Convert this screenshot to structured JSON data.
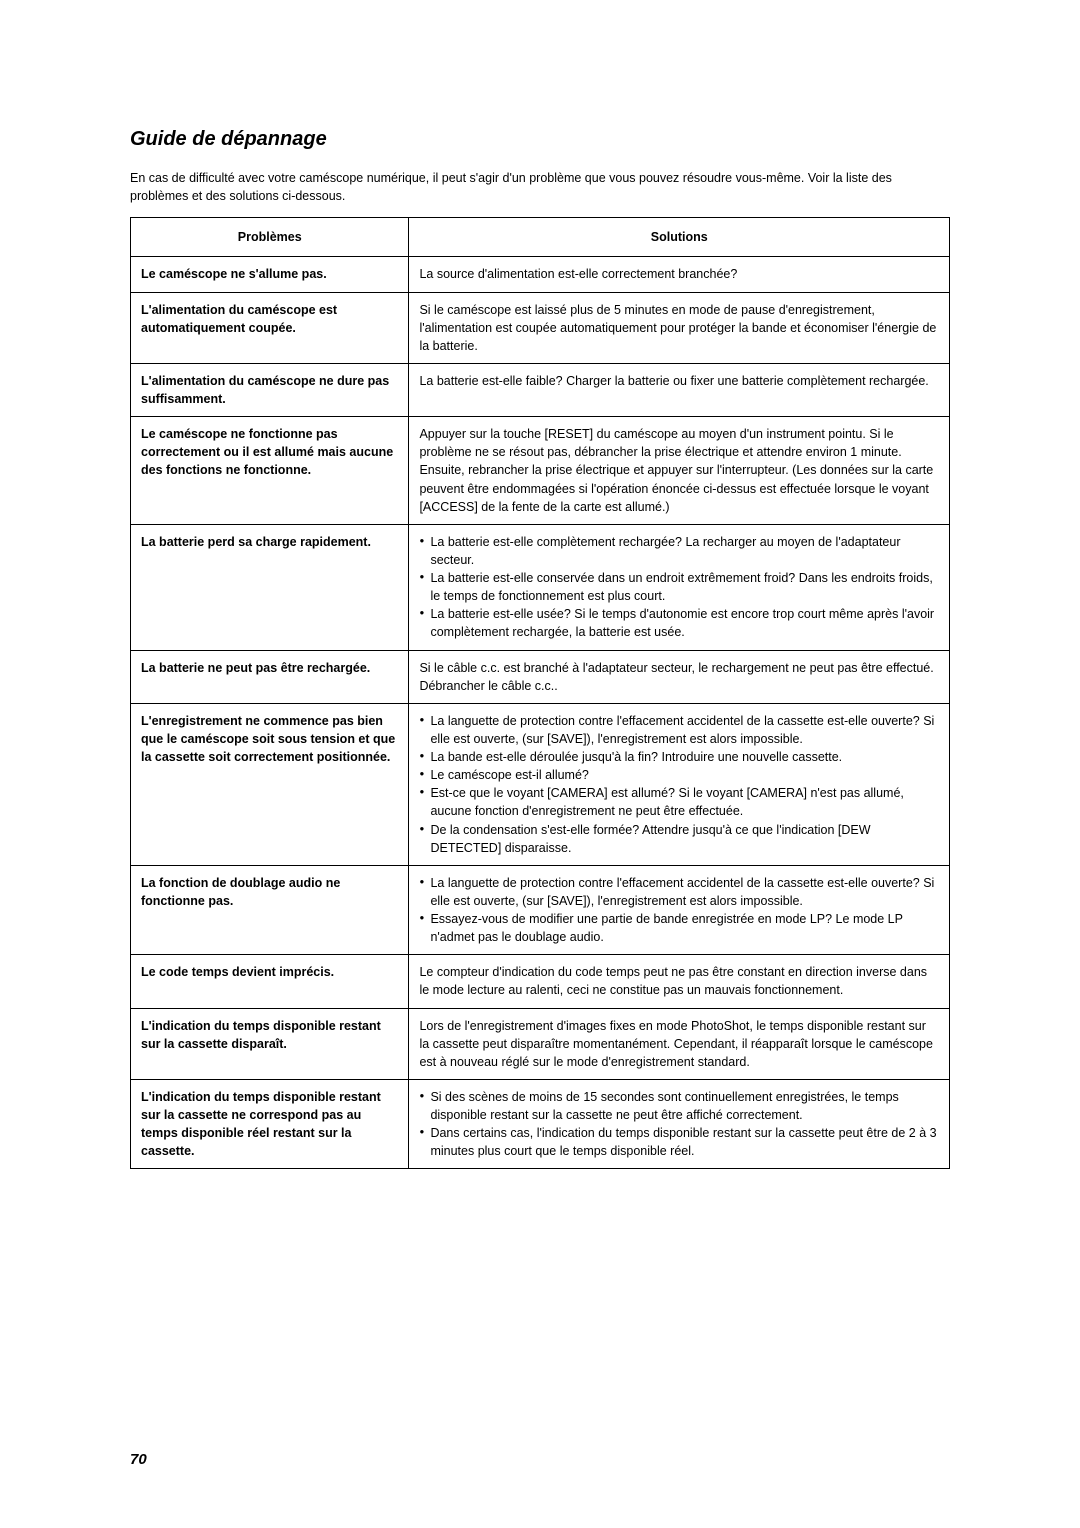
{
  "title": "Guide de dépannage",
  "intro": "En cas de difficulté avec votre caméscope numérique, il peut s'agir d'un problème que vous pouvez résoudre vous-même. Voir la liste des problèmes et des solutions ci-dessous.",
  "headers": {
    "problems": "Problèmes",
    "solutions": "Solutions"
  },
  "rows": [
    {
      "problem": "Le caméscope ne s'allume pas.",
      "solution": "La source d'alimentation est-elle correctement branchée?"
    },
    {
      "problem": "L'alimentation du caméscope est automatiquement coupée.",
      "solution": "Si le caméscope est laissé plus de 5 minutes en mode de pause d'enregistrement, l'alimentation est coupée automatiquement pour protéger la bande et économiser l'énergie de la batterie."
    },
    {
      "problem": "L'alimentation du caméscope ne dure pas suffisamment.",
      "solution": "La batterie est-elle faible? Charger la batterie ou fixer une batterie complètement rechargée."
    },
    {
      "problem": "Le caméscope ne fonctionne pas correctement ou il est allumé mais aucune des fonctions ne fonctionne.",
      "solution": "Appuyer sur la touche [RESET] du caméscope au moyen d'un instrument pointu. Si le problème ne se résout pas, débrancher la prise électrique et attendre environ 1 minute. Ensuite, rebrancher la prise électrique et appuyer sur l'interrupteur. (Les données sur la carte peuvent être endommagées si l'opération énoncée ci-dessus est effectuée lorsque le voyant [ACCESS] de la fente de la carte est allumé.)"
    },
    {
      "problem": "La batterie perd sa charge rapidement.",
      "bullets": [
        "La batterie est-elle complètement rechargée? La recharger au moyen de l'adaptateur secteur.",
        "La batterie est-elle conservée dans un endroit extrêmement froid? Dans les endroits froids, le temps de fonctionnement est plus court.",
        "La batterie est-elle usée? Si le temps d'autonomie est encore trop court même après l'avoir complètement rechargée, la batterie est usée."
      ]
    },
    {
      "problem": "La batterie ne peut pas être rechargée.",
      "solution": "Si le câble c.c. est branché à l'adaptateur secteur, le rechargement ne peut pas être effectué. Débrancher le câble c.c.."
    },
    {
      "problem": "L'enregistrement ne commence pas bien que le caméscope soit sous tension et que la cassette soit correctement positionnée.",
      "bullets": [
        "La languette de protection contre l'effacement accidentel de la cassette est-elle ouverte? Si elle est ouverte, (sur [SAVE]), l'enregistrement est alors impossible.",
        "La bande est-elle déroulée jusqu'à la fin? Introduire une nouvelle cassette.",
        "Le caméscope est-il allumé?",
        "Est-ce que le voyant [CAMERA] est allumé? Si le voyant [CAMERA] n'est pas allumé, aucune fonction d'enregistrement ne peut être effectuée.",
        "De la condensation s'est-elle formée? Attendre jusqu'à ce que l'indication [DEW DETECTED] disparaisse."
      ]
    },
    {
      "problem": "La fonction de doublage audio ne fonctionne pas.",
      "bullets": [
        "La languette de protection contre l'effacement accidentel de la cassette est-elle ouverte? Si elle est ouverte, (sur [SAVE]), l'enregistrement est alors impossible.",
        "Essayez-vous de modifier une partie de bande enregistrée en mode LP? Le mode LP n'admet pas le doublage audio."
      ]
    },
    {
      "problem": "Le code temps devient imprécis.",
      "solution": "Le compteur d'indication du code temps peut ne pas être constant en direction inverse dans le mode lecture au ralenti, ceci ne constitue pas un mauvais fonctionnement."
    },
    {
      "problem": "L'indication du temps disponible restant sur la cassette disparaît.",
      "solution": "Lors de l'enregistrement d'images fixes en mode PhotoShot, le temps disponible restant sur la cassette peut disparaître momentanément. Cependant, il réapparaît lorsque le caméscope est à nouveau réglé sur le mode d'enregistrement standard."
    },
    {
      "problem": "L'indication du temps disponible restant sur la cassette ne correspond pas au temps disponible réel restant sur la cassette.",
      "bullets": [
        "Si des scènes de moins de 15 secondes sont continuellement enregistrées, le temps disponible restant sur la cassette ne peut être affiché correctement.",
        "Dans certains cas, l'indication du temps disponible restant sur la cassette peut être de 2 à 3 minutes plus court que le temps disponible réel."
      ]
    }
  ],
  "pagenum": "70"
}
